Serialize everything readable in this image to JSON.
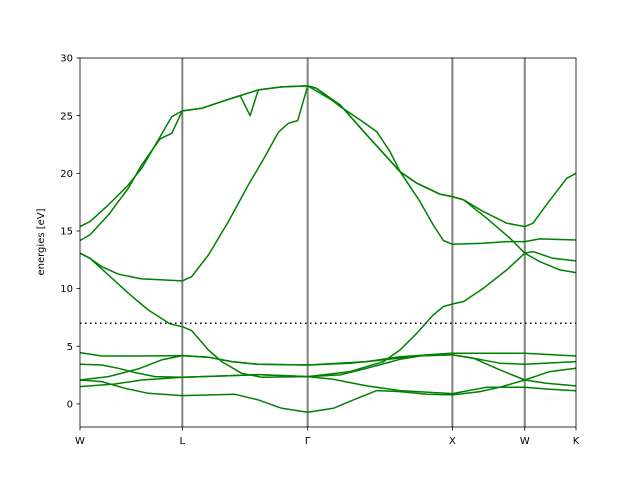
{
  "chart_data": {
    "type": "line",
    "title": "",
    "xlabel": "",
    "ylabel": "energies [eV]",
    "ylim": [
      -2,
      30
    ],
    "xlim": [
      0,
      3.427
    ],
    "yticks": [
      0,
      5,
      10,
      15,
      20,
      25,
      30
    ],
    "xticks": [
      {
        "label": "W",
        "k": 0
      },
      {
        "label": "L",
        "k": 0.707
      },
      {
        "label": "Γ",
        "k": 1.573
      },
      {
        "label": "X",
        "k": 2.573
      },
      {
        "label": "W",
        "k": 3.073
      },
      {
        "label": "K",
        "k": 3.427
      }
    ],
    "grid": false,
    "vertical_lines_at_ticks": true,
    "fermi_level": 7.0,
    "colors": {
      "bands": "#008000",
      "symmetry_lines": "#808080",
      "fermi_line": "#000000"
    },
    "bands": [
      [
        [
          0,
          15.38
        ],
        [
          0.069,
          15.81
        ],
        [
          0.196,
          17.26
        ],
        [
          0.334,
          18.99
        ],
        [
          0.426,
          20.44
        ],
        [
          0.541,
          22.9
        ],
        [
          0.634,
          24.92
        ],
        [
          0.707,
          25.41
        ]
      ],
      [
        [
          0,
          14.17
        ],
        [
          0.069,
          14.66
        ],
        [
          0.196,
          16.39
        ],
        [
          0.334,
          18.71
        ],
        [
          0.426,
          20.73
        ],
        [
          0.553,
          22.98
        ],
        [
          0.634,
          23.48
        ],
        [
          0.707,
          25.41
        ]
      ],
      [
        [
          0.707,
          25.41
        ],
        [
          0.841,
          25.64
        ],
        [
          0.979,
          26.22
        ],
        [
          1.106,
          26.74
        ],
        [
          1.232,
          27.23
        ],
        [
          1.394,
          27.49
        ],
        [
          1.573,
          27.58
        ]
      ],
      [
        [
          0.707,
          25.41
        ],
        [
          0.841,
          25.64
        ],
        [
          0.979,
          26.22
        ],
        [
          1.106,
          26.74
        ],
        [
          1.175,
          25.0
        ],
        [
          1.232,
          27.23
        ],
        [
          1.394,
          27.49
        ],
        [
          1.573,
          27.58
        ]
      ],
      [
        [
          0.707,
          10.67
        ],
        [
          0.772,
          11.04
        ],
        [
          0.887,
          12.92
        ],
        [
          1.025,
          15.81
        ],
        [
          1.163,
          18.99
        ],
        [
          1.278,
          21.45
        ],
        [
          1.37,
          23.56
        ],
        [
          1.439,
          24.34
        ],
        [
          1.504,
          24.57
        ],
        [
          1.573,
          27.58
        ]
      ],
      [
        [
          0,
          13.07
        ],
        [
          0.069,
          12.63
        ],
        [
          0.15,
          11.91
        ],
        [
          0.265,
          11.25
        ],
        [
          0.426,
          10.84
        ],
        [
          0.707,
          10.67
        ]
      ],
      [
        [
          0,
          13.07
        ],
        [
          0.069,
          12.63
        ],
        [
          0.196,
          11.19
        ],
        [
          0.334,
          9.6
        ],
        [
          0.472,
          8.15
        ],
        [
          0.622,
          6.94
        ],
        [
          0.707,
          6.7
        ],
        [
          0.772,
          6.36
        ],
        [
          0.887,
          4.68
        ],
        [
          0.979,
          3.67
        ],
        [
          1.117,
          2.66
        ],
        [
          1.255,
          2.32
        ],
        [
          1.573,
          2.37
        ]
      ],
      [
        [
          0,
          4.45
        ],
        [
          0.15,
          4.16
        ],
        [
          0.426,
          4.16
        ],
        [
          0.707,
          4.19
        ],
        [
          0.887,
          4.05
        ],
        [
          1.048,
          3.67
        ],
        [
          1.232,
          3.44
        ],
        [
          1.573,
          3.38
        ]
      ],
      [
        [
          0,
          3.44
        ],
        [
          0.15,
          3.38
        ],
        [
          0.265,
          3.09
        ],
        [
          0.38,
          2.72
        ],
        [
          0.518,
          2.37
        ],
        [
          0.707,
          2.32
        ],
        [
          1.002,
          2.43
        ],
        [
          1.232,
          2.54
        ],
        [
          1.573,
          2.37
        ]
      ],
      [
        [
          0,
          2.08
        ],
        [
          0.196,
          2.37
        ],
        [
          0.403,
          3.04
        ],
        [
          0.564,
          3.82
        ],
        [
          0.707,
          4.19
        ],
        [
          0.887,
          4.05
        ],
        [
          1.048,
          3.67
        ],
        [
          1.232,
          3.44
        ],
        [
          1.573,
          3.38
        ]
      ],
      [
        [
          0,
          1.5
        ],
        [
          0.242,
          1.73
        ],
        [
          0.426,
          2.08
        ],
        [
          0.707,
          2.32
        ],
        [
          1.002,
          2.43
        ],
        [
          1.232,
          2.54
        ],
        [
          1.573,
          2.37
        ]
      ],
      [
        [
          0,
          2.08
        ],
        [
          0.15,
          1.94
        ],
        [
          0.311,
          1.36
        ],
        [
          0.472,
          0.92
        ],
        [
          0.707,
          0.72
        ],
        [
          1.071,
          0.84
        ],
        [
          1.232,
          0.35
        ],
        [
          1.394,
          -0.38
        ],
        [
          1.573,
          -0.72
        ]
      ],
      [
        [
          1.573,
          -0.72
        ],
        [
          1.75,
          -0.38
        ],
        [
          1.888,
          0.35
        ],
        [
          2.05,
          1.16
        ],
        [
          2.211,
          1.07
        ],
        [
          2.396,
          0.84
        ],
        [
          2.573,
          0.78
        ]
      ],
      [
        [
          1.573,
          2.37
        ],
        [
          1.75,
          2.14
        ],
        [
          1.981,
          1.56
        ],
        [
          2.211,
          1.16
        ],
        [
          2.573,
          0.9
        ]
      ],
      [
        [
          1.573,
          2.37
        ],
        [
          1.797,
          2.52
        ],
        [
          1.981,
          3.09
        ],
        [
          2.211,
          3.87
        ],
        [
          2.396,
          4.25
        ],
        [
          2.573,
          4.4
        ]
      ],
      [
        [
          1.573,
          3.38
        ],
        [
          1.866,
          3.53
        ],
        [
          2.096,
          3.82
        ],
        [
          2.327,
          4.16
        ],
        [
          2.573,
          4.25
        ]
      ],
      [
        [
          1.573,
          3.38
        ],
        [
          1.981,
          3.67
        ],
        [
          2.211,
          4.1
        ],
        [
          2.573,
          4.4
        ]
      ],
      [
        [
          1.573,
          2.37
        ],
        [
          1.866,
          2.8
        ],
        [
          2.096,
          3.67
        ],
        [
          2.211,
          4.68
        ],
        [
          2.327,
          6.13
        ],
        [
          2.441,
          7.72
        ],
        [
          2.51,
          8.44
        ],
        [
          2.573,
          8.67
        ]
      ],
      [
        [
          1.573,
          27.58
        ],
        [
          1.633,
          27.38
        ],
        [
          1.797,
          25.93
        ],
        [
          1.981,
          23.33
        ],
        [
          2.211,
          20.15
        ],
        [
          2.349,
          17.55
        ],
        [
          2.441,
          15.52
        ],
        [
          2.51,
          14.17
        ],
        [
          2.573,
          13.85
        ]
      ],
      [
        [
          1.573,
          27.58
        ],
        [
          1.633,
          27.38
        ],
        [
          1.797,
          25.79
        ],
        [
          1.935,
          24.63
        ],
        [
          2.05,
          23.62
        ],
        [
          2.142,
          21.88
        ],
        [
          2.211,
          20.15
        ],
        [
          2.327,
          19.14
        ],
        [
          2.487,
          18.19
        ],
        [
          2.573,
          17.98
        ]
      ],
      [
        [
          1.573,
          27.58
        ],
        [
          1.797,
          25.93
        ],
        [
          1.981,
          23.33
        ],
        [
          2.211,
          20.15
        ],
        [
          2.327,
          19.14
        ],
        [
          2.487,
          18.19
        ],
        [
          2.573,
          17.98
        ]
      ],
      [
        [
          2.573,
          17.98
        ],
        [
          2.651,
          17.69
        ],
        [
          2.787,
          16.68
        ],
        [
          2.948,
          15.67
        ],
        [
          3.073,
          15.38
        ],
        [
          3.13,
          15.67
        ],
        [
          3.222,
          17.26
        ],
        [
          3.363,
          19.57
        ],
        [
          3.427,
          20.0
        ]
      ],
      [
        [
          2.573,
          17.98
        ],
        [
          2.651,
          17.69
        ],
        [
          2.811,
          16.1
        ],
        [
          2.971,
          14.37
        ],
        [
          3.073,
          13.07
        ],
        [
          3.13,
          13.21
        ],
        [
          3.268,
          12.63
        ],
        [
          3.427,
          12.4
        ]
      ],
      [
        [
          2.573,
          13.85
        ],
        [
          2.787,
          13.94
        ],
        [
          2.948,
          14.08
        ],
        [
          3.073,
          14.08
        ],
        [
          3.176,
          14.31
        ],
        [
          3.427,
          14.22
        ]
      ],
      [
        [
          2.573,
          8.67
        ],
        [
          2.651,
          8.88
        ],
        [
          2.787,
          10.03
        ],
        [
          2.948,
          11.62
        ],
        [
          3.073,
          13.07
        ],
        [
          3.176,
          12.34
        ],
        [
          3.315,
          11.62
        ],
        [
          3.427,
          11.39
        ]
      ],
      [
        [
          2.573,
          4.4
        ],
        [
          3.073,
          4.4
        ],
        [
          3.427,
          4.16
        ]
      ],
      [
        [
          2.573,
          4.25
        ],
        [
          2.72,
          3.96
        ],
        [
          2.902,
          3.53
        ],
        [
          3.073,
          3.44
        ],
        [
          3.427,
          3.67
        ]
      ],
      [
        [
          2.573,
          4.25
        ],
        [
          2.72,
          3.96
        ],
        [
          2.902,
          2.95
        ],
        [
          3.073,
          2.08
        ],
        [
          3.222,
          1.8
        ],
        [
          3.427,
          1.56
        ]
      ],
      [
        [
          2.573,
          0.78
        ],
        [
          2.764,
          1.07
        ],
        [
          2.902,
          1.45
        ],
        [
          3.073,
          2.08
        ],
        [
          3.245,
          2.8
        ],
        [
          3.427,
          3.09
        ]
      ],
      [
        [
          2.573,
          0.9
        ],
        [
          2.811,
          1.45
        ],
        [
          3.073,
          1.45
        ],
        [
          3.245,
          1.27
        ],
        [
          3.427,
          1.15
        ]
      ]
    ]
  }
}
